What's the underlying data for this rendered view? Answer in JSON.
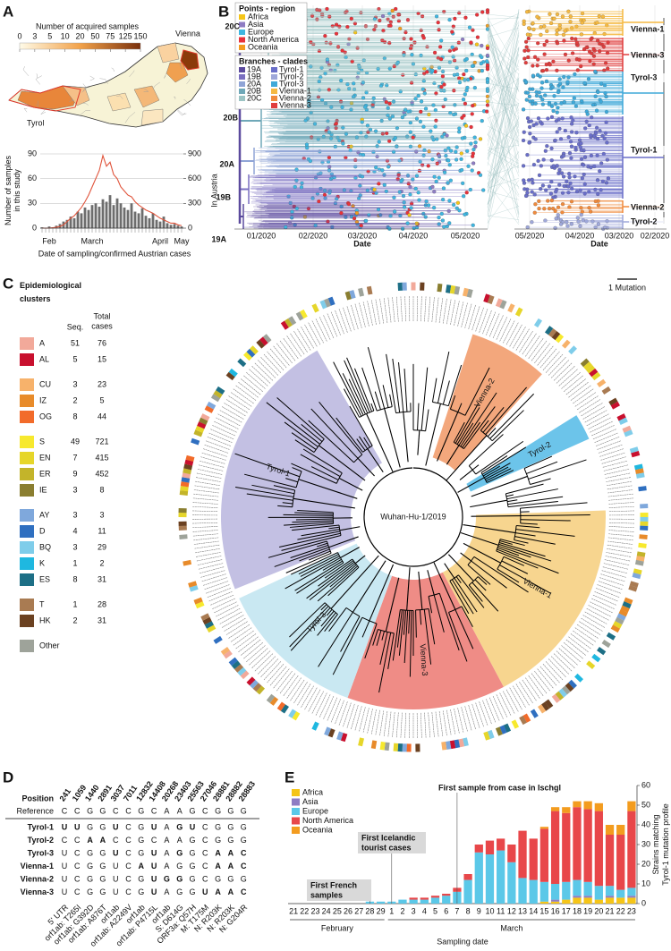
{
  "panel_labels": [
    "A",
    "B",
    "C",
    "D",
    "E"
  ],
  "map": {
    "title": "Number of acquired samples",
    "colorbar_ticks": [
      0,
      3,
      5,
      10,
      20,
      50,
      75,
      125,
      150
    ],
    "labels": [
      "Vienna",
      "Tyrol"
    ],
    "label_color": "#e0392b"
  },
  "chart_data": [
    {
      "type": "bar_line",
      "categories": [
        null,
        null,
        null,
        null,
        null,
        null,
        null,
        null,
        null,
        null,
        null,
        null,
        null,
        null,
        null,
        null,
        null,
        null,
        null,
        null,
        null,
        null,
        null,
        null,
        null,
        null,
        null,
        null,
        null,
        null,
        null,
        null,
        null,
        null,
        null,
        null,
        null,
        null,
        null,
        null
      ],
      "series": [
        {
          "kind": "bar",
          "color": "#6d6d6d",
          "values": [
            1,
            0,
            2,
            1,
            3,
            5,
            8,
            10,
            14,
            12,
            20,
            18,
            25,
            22,
            28,
            30,
            26,
            35,
            32,
            40,
            28,
            36,
            30,
            25,
            22,
            30,
            20,
            18,
            24,
            15,
            12,
            18,
            10,
            8,
            14,
            6,
            4,
            5,
            3,
            2
          ]
        },
        {
          "kind": "line",
          "axis": "y2",
          "color": "#e0533a",
          "values": [
            0,
            0,
            0,
            5,
            10,
            20,
            40,
            80,
            120,
            150,
            200,
            250,
            320,
            400,
            500,
            600,
            700,
            880,
            750,
            800,
            650,
            600,
            500,
            450,
            400,
            380,
            320,
            280,
            250,
            220,
            200,
            180,
            150,
            120,
            100,
            80,
            60,
            60,
            40,
            30
          ]
        }
      ],
      "ylim": [
        0,
        90
      ],
      "yticks": [
        0,
        30,
        60,
        90
      ],
      "y2lim": [
        0,
        900
      ],
      "y2ticks": [
        0,
        300,
        600,
        900
      ],
      "ylabel": [
        "Number of samples",
        "in this study"
      ],
      "y2label": "In Austria",
      "xlabel": "Date of sampling/confirmed Austrian cases",
      "month_labels": [
        "Feb",
        "March",
        "April",
        "May"
      ],
      "grid": true
    },
    {
      "type": "stacked_bar",
      "categories": [
        "21",
        "22",
        "23",
        "24",
        "25",
        "26",
        "27",
        "28",
        "29",
        "1",
        "2",
        "3",
        "4",
        "5",
        "6",
        "7",
        "8",
        "9",
        "10",
        "11",
        "12",
        "13",
        "14",
        "15",
        "16",
        "17",
        "18",
        "19",
        "20",
        "21",
        "22",
        "23"
      ],
      "groups": [
        "February",
        "March"
      ],
      "series": [
        {
          "name": "Africa",
          "color": "#f5c518",
          "axis": "y2",
          "values": [
            0,
            0,
            0,
            0,
            0,
            0,
            0,
            0,
            0,
            0,
            0,
            0,
            0,
            0,
            0,
            0,
            0,
            0,
            0,
            0,
            0,
            0,
            0,
            1,
            1,
            2,
            3,
            3,
            2,
            3,
            3,
            3
          ]
        },
        {
          "name": "Asia",
          "color": "#8e7cc3",
          "axis": "y2",
          "values": [
            0,
            0,
            0,
            0,
            0,
            0,
            0,
            0,
            0,
            0,
            0,
            0,
            0,
            0,
            0,
            0,
            0,
            0,
            0,
            0,
            0,
            0,
            0,
            0,
            1,
            0,
            1,
            1,
            0,
            1,
            0,
            1
          ]
        },
        {
          "name": "Europe",
          "color": "#5bc8e8",
          "axis": "y2",
          "values": [
            0,
            0,
            0,
            0,
            0,
            0,
            0,
            1,
            1,
            1,
            2,
            2,
            2,
            3,
            4,
            6,
            12,
            26,
            25,
            27,
            21,
            13,
            12,
            10,
            8,
            9,
            8,
            7,
            7,
            5,
            4,
            4
          ]
        },
        {
          "name": "North America",
          "color": "#e8474a",
          "axis": "y2",
          "values": [
            0,
            0,
            0,
            0,
            0,
            0,
            0,
            0,
            0,
            0,
            0,
            1,
            1,
            1,
            1,
            2,
            3,
            4,
            7,
            6,
            9,
            24,
            21,
            27,
            37,
            35,
            37,
            37,
            38,
            26,
            28,
            39
          ]
        },
        {
          "name": "Oceania",
          "color": "#f39c1f",
          "axis": "y2",
          "values": [
            0,
            0,
            0,
            0,
            0,
            0,
            0,
            0,
            0,
            0,
            0,
            0,
            0,
            0,
            0,
            0,
            0,
            0,
            0,
            0,
            0,
            0,
            0,
            1,
            2,
            3,
            3,
            4,
            4,
            5,
            5,
            5
          ]
        }
      ],
      "y2lim": [
        0,
        60
      ],
      "y2ticks": [
        0,
        10,
        20,
        30,
        40,
        50,
        60
      ],
      "y2label": [
        "Strains matching",
        "Tyrol-1 mutation profile"
      ],
      "xlabel": "Sampling date",
      "annotations": [
        [
          "First French",
          "samples"
        ],
        [
          "First Icelandic",
          "tourist cases"
        ],
        [
          "First sample from case in Ischgl"
        ]
      ],
      "legend": "top-left"
    }
  ],
  "tree_b": {
    "legend_regions": {
      "title": "Points - region",
      "items": [
        {
          "name": "Africa",
          "color": "#f5c518"
        },
        {
          "name": "Asia",
          "color": "#8e7cc3"
        },
        {
          "name": "Europe",
          "color": "#3fb6e0"
        },
        {
          "name": "North America",
          "color": "#e8323a"
        },
        {
          "name": "Oceania",
          "color": "#f39c1f"
        }
      ]
    },
    "legend_clades": {
      "title": "Branches - clades",
      "items": [
        {
          "name": "19A",
          "color": "#5b4a9e"
        },
        {
          "name": "19B",
          "color": "#7a6fc0"
        },
        {
          "name": "20A",
          "color": "#8fa4d6"
        },
        {
          "name": "20B",
          "color": "#6fa8b8"
        },
        {
          "name": "20C",
          "color": "#9cc4c4"
        },
        {
          "name": "Tyrol-1",
          "color": "#6a6fc9"
        },
        {
          "name": "Tyrol-2",
          "color": "#9fa8da"
        },
        {
          "name": "Tyrol-3",
          "color": "#3fa9d9"
        },
        {
          "name": "Vienna-1",
          "color": "#f5b942"
        },
        {
          "name": "Vienna-2",
          "color": "#f08a3c"
        },
        {
          "name": "Vienna-3",
          "color": "#e03d3d"
        }
      ]
    },
    "left_axis": {
      "ticks": [
        "01/2020",
        "02/2020",
        "03/2020",
        "04/2020",
        "05/2020"
      ],
      "label": "Date"
    },
    "right_axis": {
      "ticks": [
        "05/2020",
        "04/2020",
        "03/2020",
        "02/2020"
      ],
      "label": "Date"
    },
    "clade_labels_left": [
      "20C",
      "20B",
      "20A",
      "19B",
      "19A"
    ],
    "clade_labels_right": [
      "Vienna-1",
      "Vienna-3",
      "Tyrol-3",
      "Tyrol-1",
      "Vienna-2",
      "Tyrol-2"
    ]
  },
  "clusters": {
    "title": [
      "Epidemiological",
      "clusters"
    ],
    "seq_header": "Seq.",
    "total_header": [
      "Total",
      "cases"
    ],
    "rows": [
      {
        "label": "A",
        "seq": 51,
        "total": 76,
        "color": "#f2a99a"
      },
      {
        "label": "AL",
        "seq": 5,
        "total": 15,
        "color": "#c8102e"
      },
      {
        "label": "CU",
        "seq": 3,
        "total": 23,
        "color": "#f7b26b"
      },
      {
        "label": "IZ",
        "seq": 2,
        "total": 5,
        "color": "#e88b2a"
      },
      {
        "label": "OG",
        "seq": 8,
        "total": 44,
        "color": "#f26b2a"
      },
      {
        "label": "S",
        "seq": 49,
        "total": 721,
        "color": "#f7e92e"
      },
      {
        "label": "EN",
        "seq": 7,
        "total": 415,
        "color": "#e6d62a"
      },
      {
        "label": "ER",
        "seq": 9,
        "total": 452,
        "color": "#c3b42a"
      },
      {
        "label": "IE",
        "seq": 3,
        "total": 8,
        "color": "#8a7e30"
      },
      {
        "label": "AY",
        "seq": 3,
        "total": 3,
        "color": "#7fa8dc"
      },
      {
        "label": "D",
        "seq": 4,
        "total": 11,
        "color": "#2f6fc0"
      },
      {
        "label": "BQ",
        "seq": 3,
        "total": 29,
        "color": "#7fcdea"
      },
      {
        "label": "K",
        "seq": 1,
        "total": 2,
        "color": "#1fb8e0"
      },
      {
        "label": "ES",
        "seq": 8,
        "total": 31,
        "color": "#1d6f86"
      },
      {
        "label": "T",
        "seq": 1,
        "total": 28,
        "color": "#a97b52"
      },
      {
        "label": "HK",
        "seq": 2,
        "total": 31,
        "color": "#6b4121"
      },
      {
        "label": "Other",
        "color": "#9ea39a"
      }
    ]
  },
  "tree_c": {
    "center_label": "Wuhan-Hu-1/2019",
    "scale_label": "1 Mutation",
    "clades": [
      {
        "label": "Vienna-2",
        "color": "#f3a77c"
      },
      {
        "label": "Tyrol-2",
        "color": "#6cc4ea"
      },
      {
        "label": "Vienna-1",
        "color": "#f7d58f"
      },
      {
        "label": "Vienna-3",
        "color": "#ef8c86"
      },
      {
        "label": "Tyrol-3",
        "color": "#c9e8f2"
      },
      {
        "label": "Tyrol-1",
        "color": "#c3c0e3"
      }
    ]
  },
  "table_d": {
    "row_header": "Position",
    "positions": [
      241,
      1059,
      1440,
      2891,
      3037,
      7011,
      12832,
      14408,
      20268,
      23403,
      25563,
      27046,
      28881,
      28882,
      28883
    ],
    "reference_label": "Reference",
    "reference": [
      "C",
      "C",
      "G",
      "G",
      "C",
      "C",
      "G",
      "C",
      "A",
      "A",
      "G",
      "C",
      "G",
      "G",
      "G"
    ],
    "highlight_color": "#d7263d",
    "rows": [
      {
        "label": "Tyrol-1",
        "bases": [
          "U",
          "U",
          "G",
          "G",
          "U",
          "C",
          "G",
          "U",
          "A",
          "G",
          "U",
          "C",
          "G",
          "G",
          "G"
        ],
        "highlight": [
          0,
          1,
          4,
          7,
          9,
          10
        ]
      },
      {
        "label": "Tyrol-2",
        "bases": [
          "C",
          "C",
          "A",
          "A",
          "C",
          "C",
          "G",
          "C",
          "A",
          "A",
          "G",
          "C",
          "G",
          "G",
          "G"
        ],
        "highlight": [
          2,
          3
        ]
      },
      {
        "label": "Tyrol-3",
        "bases": [
          "U",
          "C",
          "G",
          "G",
          "U",
          "C",
          "G",
          "U",
          "A",
          "G",
          "G",
          "C",
          "A",
          "A",
          "C"
        ],
        "highlight": [
          4,
          7,
          9,
          12,
          13,
          14
        ]
      },
      {
        "label": "Vienna-1",
        "bases": [
          "U",
          "C",
          "G",
          "G",
          "U",
          "C",
          "A",
          "U",
          "A",
          "G",
          "G",
          "C",
          "A",
          "A",
          "C"
        ],
        "highlight": [
          6,
          7,
          12,
          13,
          14
        ]
      },
      {
        "label": "Vienna-2",
        "bases": [
          "U",
          "C",
          "G",
          "G",
          "U",
          "C",
          "G",
          "U",
          "G",
          "G",
          "G",
          "C",
          "G",
          "G",
          "G"
        ],
        "highlight": [
          7,
          8,
          9
        ]
      },
      {
        "label": "Vienna-3",
        "bases": [
          "U",
          "C",
          "G",
          "G",
          "U",
          "C",
          "G",
          "U",
          "A",
          "G",
          "G",
          "U",
          "A",
          "A",
          "C"
        ],
        "highlight": [
          7,
          11,
          12,
          13,
          14
        ]
      }
    ],
    "annotations": [
      "5' UTR",
      "orf1ab: T265I",
      "orf1ab: G392D",
      "orf1ab: A876T",
      "orf1ab",
      "orf1ab: A2249V",
      "orf1ab",
      "orf1ab: P4715L",
      "orf1ab",
      "S: D614G",
      "ORF3a: Q57H",
      "M: T175M",
      "N: R203K",
      "N: R203K",
      "N: G204R"
    ]
  }
}
